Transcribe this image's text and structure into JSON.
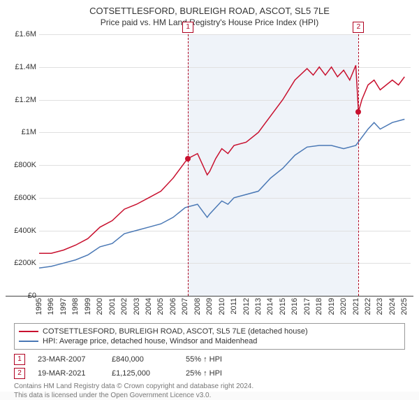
{
  "title": "COTSETTLESFORD, BURLEIGH ROAD, ASCOT, SL5 7LE",
  "subtitle": "Price paid vs. HM Land Registry's House Price Index (HPI)",
  "chart": {
    "type": "line",
    "ylim": [
      0,
      1600000
    ],
    "ytick_step": 200000,
    "ylabels": [
      "£0",
      "£200K",
      "£400K",
      "£600K",
      "£800K",
      "£1M",
      "£1.2M",
      "£1.4M",
      "£1.6M"
    ],
    "xmin": 1995,
    "xmax": 2025.5,
    "xticks": [
      1995,
      1996,
      1997,
      1998,
      1999,
      2000,
      2001,
      2002,
      2003,
      2004,
      2005,
      2006,
      2007,
      2008,
      2009,
      2010,
      2011,
      2012,
      2013,
      2014,
      2015,
      2016,
      2017,
      2018,
      2019,
      2020,
      2021,
      2022,
      2023,
      2024,
      2025
    ],
    "background_color": "#ffffff",
    "grid_color": "#e0e0e0",
    "shaded_region": {
      "start": 2007.22,
      "end": 2021.22,
      "color": "#e8eef7"
    },
    "series": [
      {
        "name": "property",
        "label": "COTSETTLESFORD, BURLEIGH ROAD, ASCOT, SL5 7LE (detached house)",
        "color": "#c8102e",
        "line_width": 1.5,
        "points": [
          [
            1995,
            260000
          ],
          [
            1996,
            260000
          ],
          [
            1997,
            280000
          ],
          [
            1998,
            310000
          ],
          [
            1999,
            350000
          ],
          [
            2000,
            420000
          ],
          [
            2001,
            460000
          ],
          [
            2002,
            530000
          ],
          [
            2003,
            560000
          ],
          [
            2004,
            600000
          ],
          [
            2005,
            640000
          ],
          [
            2006,
            720000
          ],
          [
            2007,
            820000
          ],
          [
            2007.22,
            840000
          ],
          [
            2008,
            870000
          ],
          [
            2008.8,
            740000
          ],
          [
            2009,
            760000
          ],
          [
            2009.5,
            840000
          ],
          [
            2010,
            900000
          ],
          [
            2010.5,
            870000
          ],
          [
            2011,
            920000
          ],
          [
            2012,
            940000
          ],
          [
            2013,
            1000000
          ],
          [
            2014,
            1100000
          ],
          [
            2015,
            1200000
          ],
          [
            2016,
            1320000
          ],
          [
            2017,
            1390000
          ],
          [
            2017.5,
            1350000
          ],
          [
            2018,
            1400000
          ],
          [
            2018.5,
            1350000
          ],
          [
            2019,
            1400000
          ],
          [
            2019.5,
            1340000
          ],
          [
            2020,
            1380000
          ],
          [
            2020.5,
            1320000
          ],
          [
            2021,
            1410000
          ],
          [
            2021.22,
            1125000
          ],
          [
            2021.5,
            1200000
          ],
          [
            2022,
            1290000
          ],
          [
            2022.5,
            1320000
          ],
          [
            2023,
            1260000
          ],
          [
            2024,
            1320000
          ],
          [
            2024.5,
            1290000
          ],
          [
            2025,
            1340000
          ]
        ]
      },
      {
        "name": "hpi",
        "label": "HPI: Average price, detached house, Windsor and Maidenhead",
        "color": "#4a78b5",
        "line_width": 1.5,
        "points": [
          [
            1995,
            170000
          ],
          [
            1996,
            180000
          ],
          [
            1997,
            200000
          ],
          [
            1998,
            220000
          ],
          [
            1999,
            250000
          ],
          [
            2000,
            300000
          ],
          [
            2001,
            320000
          ],
          [
            2002,
            380000
          ],
          [
            2003,
            400000
          ],
          [
            2004,
            420000
          ],
          [
            2005,
            440000
          ],
          [
            2006,
            480000
          ],
          [
            2007,
            540000
          ],
          [
            2008,
            560000
          ],
          [
            2008.8,
            480000
          ],
          [
            2009,
            500000
          ],
          [
            2010,
            580000
          ],
          [
            2010.5,
            560000
          ],
          [
            2011,
            600000
          ],
          [
            2012,
            620000
          ],
          [
            2013,
            640000
          ],
          [
            2014,
            720000
          ],
          [
            2015,
            780000
          ],
          [
            2016,
            860000
          ],
          [
            2017,
            910000
          ],
          [
            2018,
            920000
          ],
          [
            2019,
            920000
          ],
          [
            2020,
            900000
          ],
          [
            2021,
            920000
          ],
          [
            2022,
            1020000
          ],
          [
            2022.5,
            1060000
          ],
          [
            2023,
            1020000
          ],
          [
            2024,
            1060000
          ],
          [
            2025,
            1080000
          ]
        ]
      }
    ],
    "vlines": [
      {
        "num": "1",
        "x": 2007.22
      },
      {
        "num": "2",
        "x": 2021.22
      }
    ],
    "markers": [
      {
        "x": 2007.22,
        "y": 840000,
        "color": "#c8102e"
      },
      {
        "x": 2021.22,
        "y": 1125000,
        "color": "#c8102e"
      }
    ]
  },
  "legend": [
    {
      "color": "#c8102e",
      "text": "COTSETTLESFORD, BURLEIGH ROAD, ASCOT, SL5 7LE (detached house)"
    },
    {
      "color": "#4a78b5",
      "text": "HPI: Average price, detached house, Windsor and Maidenhead"
    }
  ],
  "events": [
    {
      "num": "1",
      "date": "23-MAR-2007",
      "price": "£840,000",
      "pct": "55% ↑ HPI"
    },
    {
      "num": "2",
      "date": "19-MAR-2021",
      "price": "£1,125,000",
      "pct": "25% ↑ HPI"
    }
  ],
  "footer_line1": "Contains HM Land Registry data © Crown copyright and database right 2024.",
  "footer_line2": "This data is licensed under the Open Government Licence v3.0."
}
